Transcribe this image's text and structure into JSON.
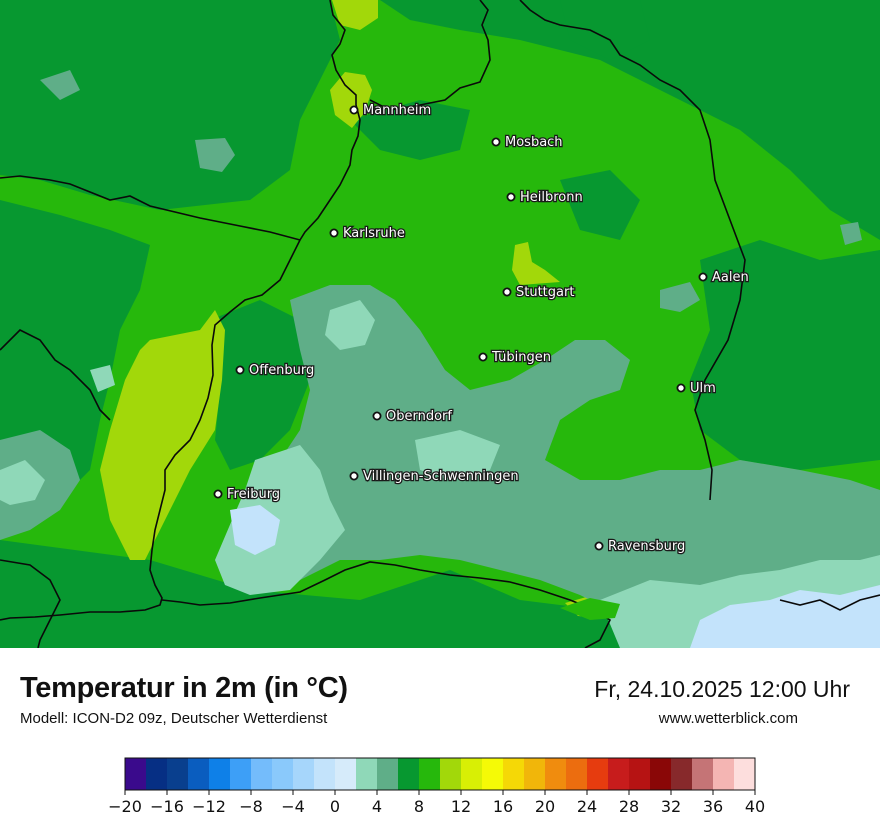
{
  "title": "Temperatur in 2m (in °C)",
  "subtitle": "Modell: ICON-D2 09z, Deutscher Wetterdienst",
  "datetime": "Fr, 24.10.2025 12:00 Uhr",
  "website": "www.wetterblick.com",
  "cities": [
    {
      "name": "Mannheim"
    },
    {
      "name": "Mosbach"
    },
    {
      "name": "Heilbronn"
    },
    {
      "name": "Karlsruhe"
    },
    {
      "name": "Aalen"
    },
    {
      "name": "Stuttgart"
    },
    {
      "name": "Tübingen"
    },
    {
      "name": "Offenburg"
    },
    {
      "name": "Ulm"
    },
    {
      "name": "Oberndorf"
    },
    {
      "name": "Villingen-Schwenningen"
    },
    {
      "name": "Freiburg"
    },
    {
      "name": "Ravensburg"
    }
  ],
  "legend": {
    "min": -20,
    "max": 40,
    "step": 2,
    "tick_labels": [
      "−20",
      "−16",
      "−12",
      "−8",
      "−4",
      "0",
      "4",
      "8",
      "12",
      "16",
      "20",
      "24",
      "28",
      "32",
      "36",
      "40"
    ],
    "colors": [
      "#3a0a8c",
      "#062f84",
      "#093f8e",
      "#0a5dbf",
      "#0e80e8",
      "#3d9ff7",
      "#74bcfb",
      "#8ac9fb",
      "#a6d6fb",
      "#c3e3fb",
      "#d6ebfa",
      "#8fd8b8",
      "#5fae88",
      "#079830",
      "#26b80c",
      "#a2d80a",
      "#d8ef05",
      "#f5fa06",
      "#f5d806",
      "#f1b60a",
      "#f08c0e",
      "#ec6d0f",
      "#e63c0f",
      "#c71c1c",
      "#b61313",
      "#8a0707",
      "#87292b",
      "#c57476",
      "#f4b5b3",
      "#fddedd"
    ]
  },
  "map_colors": {
    "t2_4": "#8fd8b8",
    "t4_6": "#5fae88",
    "t6_8": "#079830",
    "t8_10": "#26b80c",
    "t10_12": "#a2d80a",
    "t0_2": "#c3e3fb",
    "t_neg2_0": "#a6d6fb",
    "border": "#0a0a0a"
  }
}
